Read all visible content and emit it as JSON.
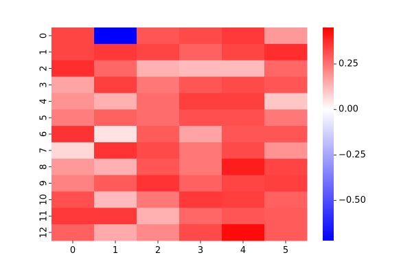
{
  "chart_data": {
    "type": "heatmap",
    "title": "",
    "xlabel": "",
    "ylabel": "",
    "columns": [
      "0",
      "1",
      "2",
      "3",
      "4",
      "5"
    ],
    "rows": [
      "0",
      "1",
      "2",
      "3",
      "4",
      "5",
      "6",
      "7",
      "8",
      "9",
      "10",
      "11",
      "12"
    ],
    "values": [
      [
        0.33,
        -0.72,
        0.3,
        0.32,
        0.35,
        0.18
      ],
      [
        0.33,
        0.35,
        0.33,
        0.28,
        0.33,
        0.37
      ],
      [
        0.37,
        0.27,
        0.14,
        0.12,
        0.12,
        0.27
      ],
      [
        0.16,
        0.34,
        0.24,
        0.3,
        0.32,
        0.3
      ],
      [
        0.19,
        0.14,
        0.26,
        0.34,
        0.34,
        0.1
      ],
      [
        0.23,
        0.28,
        0.26,
        0.31,
        0.31,
        0.24
      ],
      [
        0.36,
        0.05,
        0.29,
        0.16,
        0.3,
        0.3
      ],
      [
        0.07,
        0.36,
        0.32,
        0.24,
        0.32,
        0.19
      ],
      [
        0.18,
        0.14,
        0.3,
        0.24,
        0.4,
        0.33
      ],
      [
        0.22,
        0.29,
        0.36,
        0.28,
        0.33,
        0.34
      ],
      [
        0.31,
        0.12,
        0.24,
        0.35,
        0.34,
        0.28
      ],
      [
        0.35,
        0.35,
        0.14,
        0.27,
        0.3,
        0.29
      ],
      [
        0.28,
        0.15,
        0.21,
        0.32,
        0.43,
        0.29
      ]
    ],
    "colorbar": {
      "vmin": -0.72,
      "vmax": 0.45,
      "ticks": [
        0.25,
        0.0,
        -0.25,
        -0.5
      ],
      "tick_labels": [
        "0.25",
        "0.00",
        "−0.25",
        "−0.50"
      ],
      "colormap": "bwr",
      "colors": {
        "low": "#0000ff",
        "mid": "#ffffff",
        "high": "#ff0000"
      }
    },
    "grid": false,
    "legend": "colorbar-right"
  }
}
